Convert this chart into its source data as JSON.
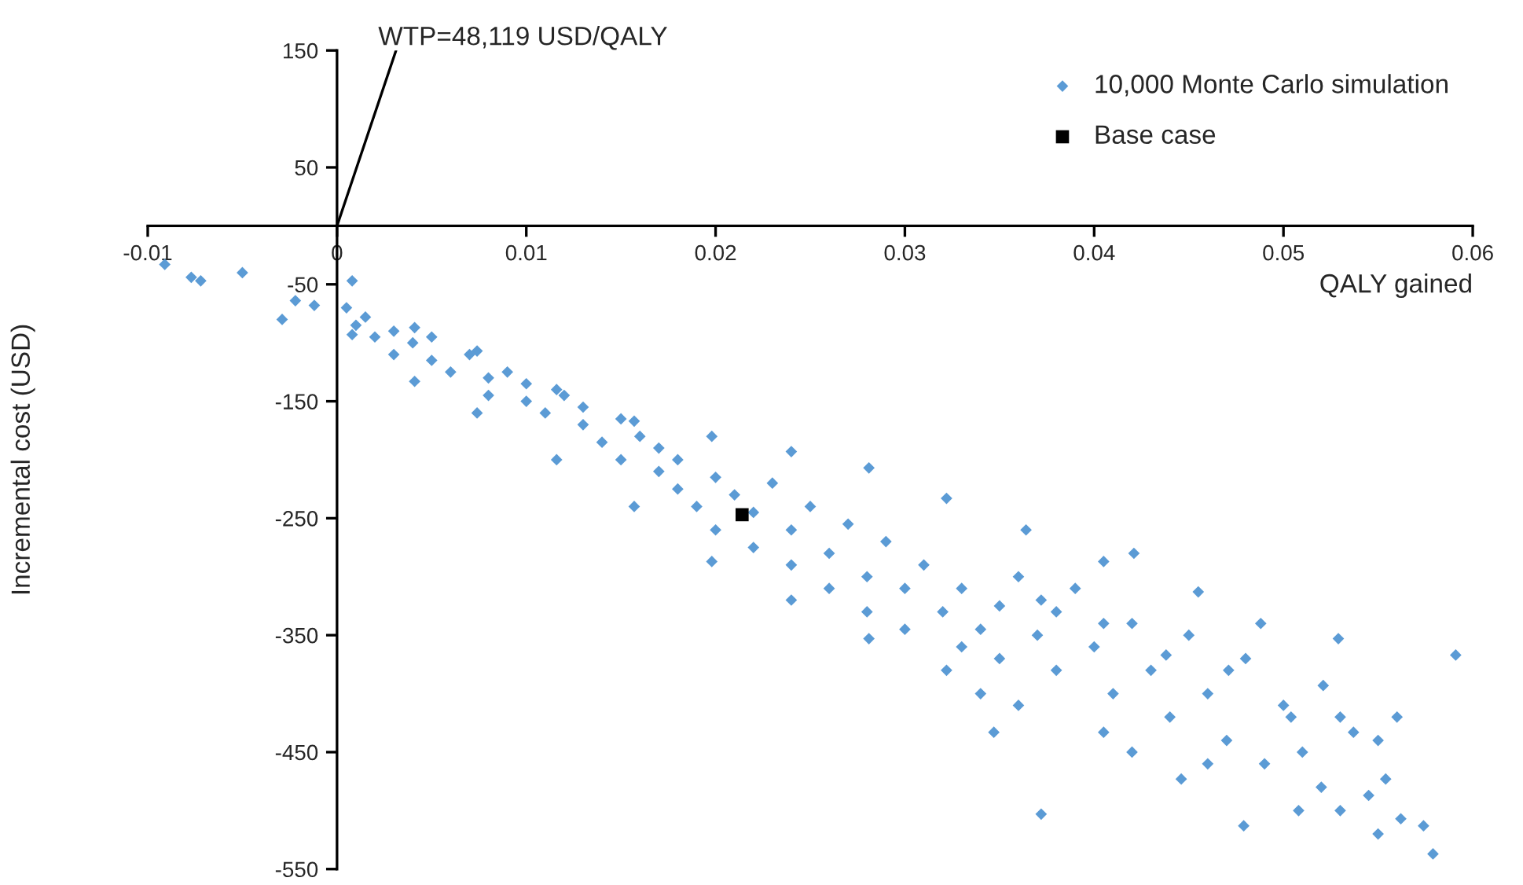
{
  "chart_data": {
    "type": "scatter",
    "xlabel": "QALY gained",
    "ylabel": "Incremental cost (USD)",
    "xlim": [
      -0.01,
      0.06
    ],
    "xticks": [
      -0.01,
      0,
      0.01,
      0.02,
      0.03,
      0.04,
      0.05,
      0.06
    ],
    "ylim": [
      -550,
      150
    ],
    "yticks": [
      150,
      50,
      -50,
      -150,
      -250,
      -350,
      -450,
      -550
    ],
    "grid": false,
    "legend": "top right",
    "annotations": [
      {
        "text": "WTP=48,119 USD/QALY",
        "x": 0.0031,
        "y": 150
      }
    ],
    "series": [
      {
        "name": "10,000 Monte Carlo simulation",
        "color": "#5b9bd5",
        "marker": "diamond",
        "x": [
          -0.0091,
          -0.0077,
          -0.0072,
          -0.005,
          -0.0022,
          -0.0012,
          -0.0029,
          0.0008,
          0.0041,
          0.0074,
          0.0116,
          0.0157,
          0.0198,
          0.024,
          0.0281,
          0.0322,
          0.0364,
          0.0405,
          0.0421,
          0.0455,
          0.0488,
          0.0529,
          0.0591,
          0.0008,
          0.0041,
          0.0074,
          0.0116,
          0.0157,
          0.0198,
          0.024,
          0.0281,
          0.0322,
          0.0347,
          0.0372,
          0.0405,
          0.0446,
          0.0479,
          0.0508,
          0.0545,
          0.0562,
          0.0579,
          0.0574,
          0.0554,
          0.0537,
          0.0521,
          0.0504,
          0.0471,
          0.0438,
          0.0405,
          0.0372,
          0.0005,
          0.001,
          0.0015,
          0.002,
          0.003,
          0.003,
          0.004,
          0.005,
          0.005,
          0.006,
          0.007,
          0.008,
          0.008,
          0.009,
          0.01,
          0.01,
          0.011,
          0.012,
          0.013,
          0.013,
          0.014,
          0.015,
          0.015,
          0.016,
          0.017,
          0.017,
          0.018,
          0.018,
          0.019,
          0.02,
          0.02,
          0.021,
          0.022,
          0.022,
          0.023,
          0.024,
          0.024,
          0.025,
          0.026,
          0.026,
          0.027,
          0.028,
          0.028,
          0.029,
          0.03,
          0.03,
          0.031,
          0.032,
          0.033,
          0.033,
          0.034,
          0.035,
          0.035,
          0.036,
          0.037,
          0.038,
          0.038,
          0.039,
          0.04,
          0.041,
          0.042,
          0.043,
          0.044,
          0.045,
          0.046,
          0.047,
          0.048,
          0.049,
          0.05,
          0.051,
          0.052,
          0.053,
          0.055,
          0.056,
          0.055,
          0.053,
          0.046,
          0.042,
          0.036,
          0.034
        ],
        "values": [
          -33,
          -44,
          -47,
          -40,
          -64,
          -68,
          -80,
          -47,
          -87,
          -107,
          -140,
          -167,
          -180,
          -193,
          -207,
          -233,
          -260,
          -287,
          -280,
          -313,
          -340,
          -353,
          -367,
          -93,
          -133,
          -160,
          -200,
          -240,
          -287,
          -320,
          -353,
          -380,
          -433,
          -503,
          -433,
          -473,
          -513,
          -500,
          -487,
          -507,
          -537,
          -513,
          -473,
          -433,
          -393,
          -420,
          -380,
          -367,
          -340,
          -320,
          -70,
          -85,
          -78,
          -95,
          -90,
          -110,
          -100,
          -115,
          -95,
          -125,
          -110,
          -130,
          -145,
          -125,
          -150,
          -135,
          -160,
          -145,
          -170,
          -155,
          -185,
          -165,
          -200,
          -180,
          -210,
          -190,
          -225,
          -200,
          -240,
          -215,
          -260,
          -230,
          -275,
          -245,
          -220,
          -260,
          -290,
          -240,
          -280,
          -310,
          -255,
          -300,
          -330,
          -270,
          -310,
          -345,
          -290,
          -330,
          -360,
          -310,
          -345,
          -370,
          -325,
          -300,
          -350,
          -380,
          -330,
          -310,
          -360,
          -400,
          -340,
          -380,
          -420,
          -350,
          -400,
          -440,
          -370,
          -460,
          -410,
          -450,
          -480,
          -420,
          -440,
          -420,
          -520,
          -500,
          -460,
          -450,
          -410,
          -400
        ]
      },
      {
        "name": "Base case",
        "color": "#000000",
        "marker": "square",
        "x": [
          0.0214
        ],
        "values": [
          -247
        ]
      },
      {
        "type": "line",
        "color": "#000000",
        "line_style": "solid",
        "x": [
          0,
          0.003117
        ],
        "values": [
          0,
          150
        ]
      }
    ]
  }
}
